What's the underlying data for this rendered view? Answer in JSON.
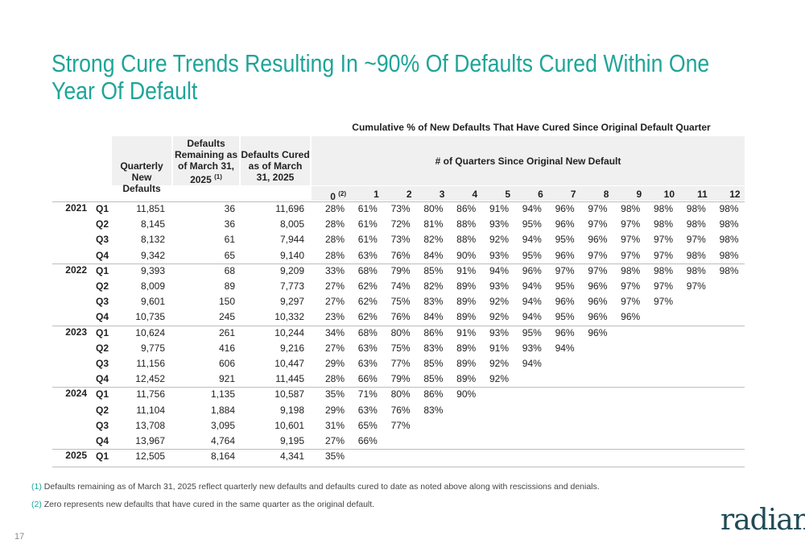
{
  "header": {
    "title": "Strong Cure Trends Resulting In ~90% Of Defaults Cured Within One Year Of Default"
  },
  "table": {
    "super_header": "Cumulative % of New Defaults That Have Cured Since Original Default Quarter",
    "col_headers": {
      "new_defaults": "Quarterly New Defaults",
      "remaining": "Defaults Remaining as of March 31, 2025",
      "remaining_note": "(1)",
      "cured": "Defaults Cured as of March 31, 2025",
      "quarters_since": "# of Quarters Since Original New Default"
    },
    "quarters": [
      "0",
      "1",
      "2",
      "3",
      "4",
      "5",
      "6",
      "7",
      "8",
      "9",
      "10",
      "11",
      "12"
    ],
    "quarter0_note": "(2)",
    "groups": [
      {
        "year": "2021",
        "rows": [
          {
            "quarter": "Q1",
            "cells": [
              "11,851",
              "36",
              "11,696",
              "28%",
              "61%",
              "73%",
              "80%",
              "86%",
              "91%",
              "94%",
              "96%",
              "97%",
              "98%",
              "98%",
              "98%",
              "98%"
            ]
          },
          {
            "quarter": "Q2",
            "cells": [
              "8,145",
              "36",
              "8,005",
              "28%",
              "61%",
              "72%",
              "81%",
              "88%",
              "93%",
              "95%",
              "96%",
              "97%",
              "97%",
              "98%",
              "98%",
              "98%"
            ]
          },
          {
            "quarter": "Q3",
            "cells": [
              "8,132",
              "61",
              "7,944",
              "28%",
              "61%",
              "73%",
              "82%",
              "88%",
              "92%",
              "94%",
              "95%",
              "96%",
              "97%",
              "97%",
              "97%",
              "98%"
            ]
          },
          {
            "quarter": "Q4",
            "cells": [
              "9,342",
              "65",
              "9,140",
              "28%",
              "63%",
              "76%",
              "84%",
              "90%",
              "93%",
              "95%",
              "96%",
              "97%",
              "97%",
              "97%",
              "98%",
              "98%"
            ]
          }
        ]
      },
      {
        "year": "2022",
        "rows": [
          {
            "quarter": "Q1",
            "cells": [
              "9,393",
              "68",
              "9,209",
              "33%",
              "68%",
              "79%",
              "85%",
              "91%",
              "94%",
              "96%",
              "97%",
              "97%",
              "98%",
              "98%",
              "98%",
              "98%"
            ]
          },
          {
            "quarter": "Q2",
            "cells": [
              "8,009",
              "89",
              "7,773",
              "27%",
              "62%",
              "74%",
              "82%",
              "89%",
              "93%",
              "94%",
              "95%",
              "96%",
              "97%",
              "97%",
              "97%"
            ]
          },
          {
            "quarter": "Q3",
            "cells": [
              "9,601",
              "150",
              "9,297",
              "27%",
              "62%",
              "75%",
              "83%",
              "89%",
              "92%",
              "94%",
              "96%",
              "96%",
              "97%",
              "97%"
            ]
          },
          {
            "quarter": "Q4",
            "cells": [
              "10,735",
              "245",
              "10,332",
              "23%",
              "62%",
              "76%",
              "84%",
              "89%",
              "92%",
              "94%",
              "95%",
              "96%",
              "96%"
            ]
          }
        ]
      },
      {
        "year": "2023",
        "rows": [
          {
            "quarter": "Q1",
            "cells": [
              "10,624",
              "261",
              "10,244",
              "34%",
              "68%",
              "80%",
              "86%",
              "91%",
              "93%",
              "95%",
              "96%",
              "96%"
            ]
          },
          {
            "quarter": "Q2",
            "cells": [
              "9,775",
              "416",
              "9,216",
              "27%",
              "63%",
              "75%",
              "83%",
              "89%",
              "91%",
              "93%",
              "94%"
            ]
          },
          {
            "quarter": "Q3",
            "cells": [
              "11,156",
              "606",
              "10,447",
              "29%",
              "63%",
              "77%",
              "85%",
              "89%",
              "92%",
              "94%"
            ]
          },
          {
            "quarter": "Q4",
            "cells": [
              "12,452",
              "921",
              "11,445",
              "28%",
              "66%",
              "79%",
              "85%",
              "89%",
              "92%"
            ]
          }
        ]
      },
      {
        "year": "2024",
        "rows": [
          {
            "quarter": "Q1",
            "cells": [
              "11,756",
              "1,135",
              "10,587",
              "35%",
              "71%",
              "80%",
              "86%",
              "90%"
            ]
          },
          {
            "quarter": "Q2",
            "cells": [
              "11,104",
              "1,884",
              "9,198",
              "29%",
              "63%",
              "76%",
              "83%"
            ]
          },
          {
            "quarter": "Q3",
            "cells": [
              "13,708",
              "3,095",
              "10,601",
              "31%",
              "65%",
              "77%"
            ]
          },
          {
            "quarter": "Q4",
            "cells": [
              "13,967",
              "4,764",
              "9,195",
              "27%",
              "66%"
            ]
          }
        ]
      },
      {
        "year": "2025",
        "rows": [
          {
            "quarter": "Q1",
            "cells": [
              "12,505",
              "8,164",
              "4,341",
              "35%"
            ]
          }
        ]
      }
    ]
  },
  "footnotes": [
    {
      "marker": "(1)",
      "text": "Defaults remaining as of March 31, 2025 reflect quarterly new defaults and defaults cured to date as noted above along with rescissions and denials."
    },
    {
      "marker": "(2)",
      "text": "Zero represents new defaults that have cured in the same quarter as the original default."
    }
  ],
  "footer": {
    "page_number": "17",
    "logo": "radian"
  }
}
